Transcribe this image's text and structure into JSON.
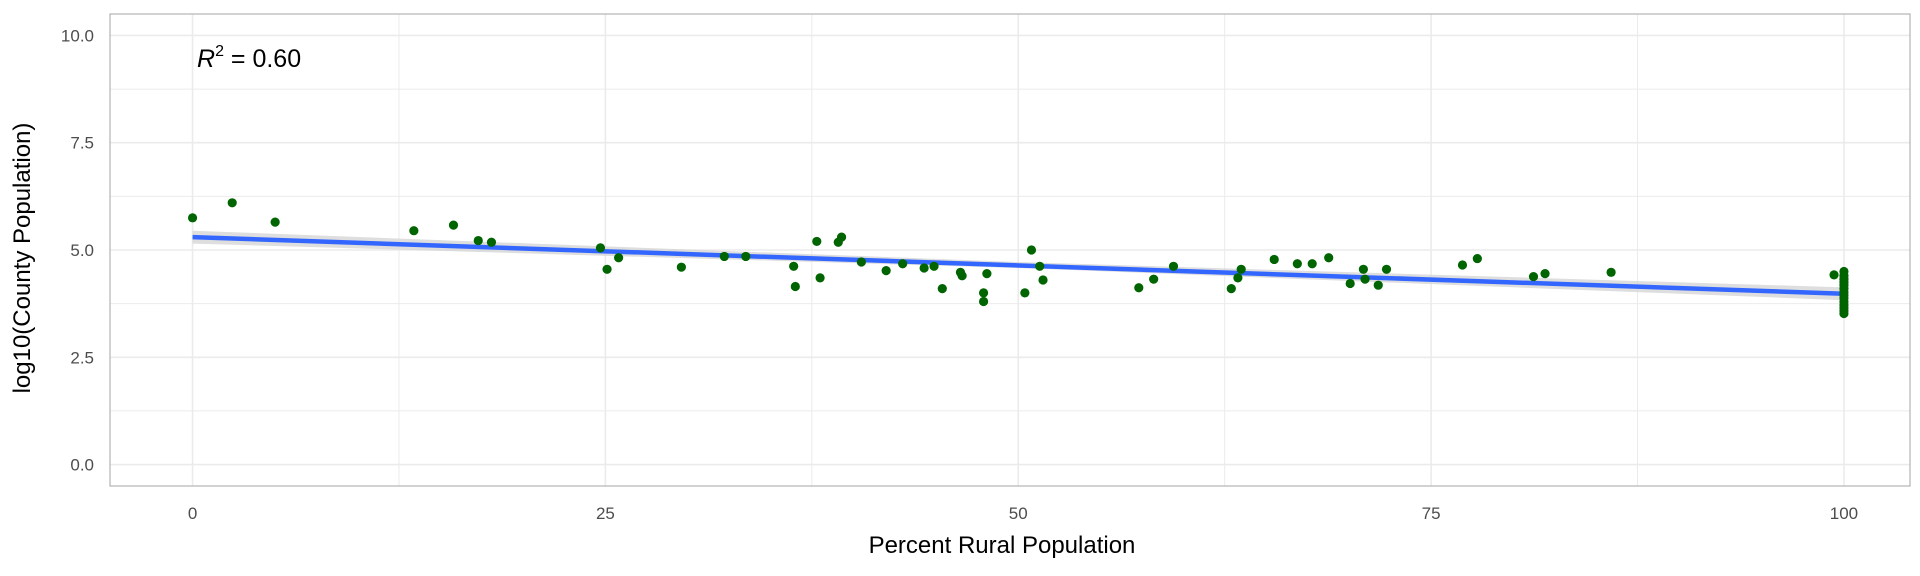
{
  "chart_data": {
    "type": "scatter",
    "xlabel": "Percent Rural Population",
    "ylabel": "log10(County Population)",
    "xlim": [
      -5,
      104
    ],
    "ylim": [
      -0.5,
      10.5
    ],
    "x_ticks": [
      0,
      25,
      50,
      75,
      100
    ],
    "x_tick_labels": [
      "0",
      "25",
      "50",
      "75",
      "100"
    ],
    "y_ticks": [
      0,
      2.5,
      5,
      7.5,
      10
    ],
    "y_tick_labels": [
      "0.0",
      "2.5",
      "5.0",
      "7.5",
      "10.0"
    ],
    "grid": true,
    "annotation": {
      "var": "R",
      "sup": "2",
      "rest": " = 0.60"
    },
    "colors": {
      "points": "#006400",
      "fit_line": "#3366FF",
      "confidence_band": "#d3d3d3",
      "grid": "#ebebeb",
      "panel_border": "#b3b3b3"
    },
    "fit_line": {
      "x": [
        0,
        100
      ],
      "y": [
        5.3,
        3.98
      ]
    },
    "confidence_band": {
      "x": [
        0,
        50,
        100
      ],
      "lower": [
        5.15,
        4.58,
        3.83
      ],
      "upper": [
        5.45,
        4.72,
        4.13
      ]
    },
    "points": [
      {
        "x": 0,
        "y": 5.75
      },
      {
        "x": 2.4,
        "y": 6.1
      },
      {
        "x": 5.0,
        "y": 5.65
      },
      {
        "x": 13.4,
        "y": 5.45
      },
      {
        "x": 15.8,
        "y": 5.58
      },
      {
        "x": 17.3,
        "y": 5.22
      },
      {
        "x": 18.1,
        "y": 5.18
      },
      {
        "x": 24.7,
        "y": 5.05
      },
      {
        "x": 25.1,
        "y": 4.55
      },
      {
        "x": 25.8,
        "y": 4.82
      },
      {
        "x": 29.6,
        "y": 4.6
      },
      {
        "x": 32.2,
        "y": 4.85
      },
      {
        "x": 33.5,
        "y": 4.85
      },
      {
        "x": 36.4,
        "y": 4.62
      },
      {
        "x": 36.5,
        "y": 4.15
      },
      {
        "x": 37.8,
        "y": 5.2
      },
      {
        "x": 38.0,
        "y": 4.35
      },
      {
        "x": 39.1,
        "y": 5.18
      },
      {
        "x": 39.3,
        "y": 5.3
      },
      {
        "x": 40.5,
        "y": 4.72
      },
      {
        "x": 42.0,
        "y": 4.52
      },
      {
        "x": 43.0,
        "y": 4.68
      },
      {
        "x": 44.3,
        "y": 4.58
      },
      {
        "x": 44.9,
        "y": 4.62
      },
      {
        "x": 45.4,
        "y": 4.1
      },
      {
        "x": 46.5,
        "y": 4.48
      },
      {
        "x": 46.6,
        "y": 4.4
      },
      {
        "x": 47.9,
        "y": 4.0
      },
      {
        "x": 47.9,
        "y": 3.8
      },
      {
        "x": 48.1,
        "y": 4.45
      },
      {
        "x": 50.4,
        "y": 4.0
      },
      {
        "x": 50.8,
        "y": 5.0
      },
      {
        "x": 51.3,
        "y": 4.62
      },
      {
        "x": 51.5,
        "y": 4.3
      },
      {
        "x": 57.3,
        "y": 4.12
      },
      {
        "x": 58.2,
        "y": 4.32
      },
      {
        "x": 59.4,
        "y": 4.62
      },
      {
        "x": 62.9,
        "y": 4.1
      },
      {
        "x": 63.3,
        "y": 4.35
      },
      {
        "x": 63.5,
        "y": 4.55
      },
      {
        "x": 65.5,
        "y": 4.78
      },
      {
        "x": 66.9,
        "y": 4.68
      },
      {
        "x": 67.8,
        "y": 4.68
      },
      {
        "x": 68.8,
        "y": 4.82
      },
      {
        "x": 70.1,
        "y": 4.22
      },
      {
        "x": 70.9,
        "y": 4.55
      },
      {
        "x": 71.0,
        "y": 4.32
      },
      {
        "x": 71.8,
        "y": 4.18
      },
      {
        "x": 72.3,
        "y": 4.55
      },
      {
        "x": 76.9,
        "y": 4.65
      },
      {
        "x": 77.8,
        "y": 4.8
      },
      {
        "x": 81.2,
        "y": 4.38
      },
      {
        "x": 81.9,
        "y": 4.45
      },
      {
        "x": 85.9,
        "y": 4.48
      },
      {
        "x": 99.4,
        "y": 4.42
      },
      {
        "x": 100,
        "y": 4.5
      },
      {
        "x": 100,
        "y": 4.4
      },
      {
        "x": 100,
        "y": 4.32
      },
      {
        "x": 100,
        "y": 4.25
      },
      {
        "x": 100,
        "y": 4.18
      },
      {
        "x": 100,
        "y": 4.1
      },
      {
        "x": 100,
        "y": 4.02
      },
      {
        "x": 100,
        "y": 3.95
      },
      {
        "x": 100,
        "y": 3.88
      },
      {
        "x": 100,
        "y": 3.8
      },
      {
        "x": 100,
        "y": 3.72
      },
      {
        "x": 100,
        "y": 3.65
      },
      {
        "x": 100,
        "y": 3.58
      },
      {
        "x": 100,
        "y": 3.52
      }
    ]
  }
}
